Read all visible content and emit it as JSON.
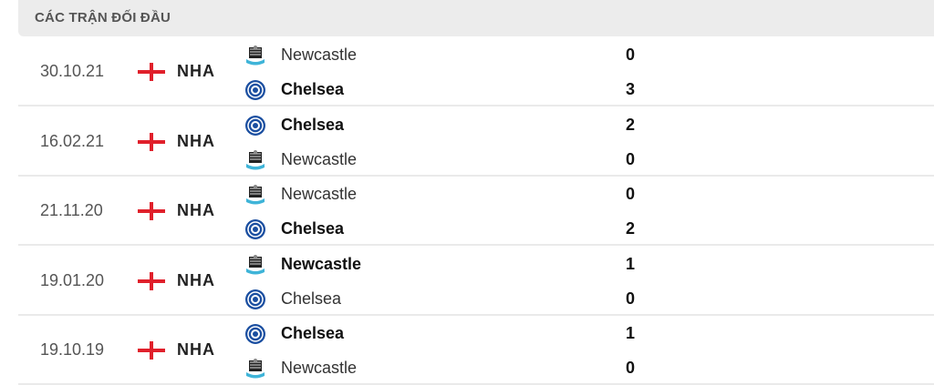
{
  "section_title": "CÁC TRẬN ĐỐI ĐẦU",
  "matches": [
    {
      "date": "30.10.21",
      "league": "NHA",
      "home": {
        "name": "Newcastle",
        "logo": "newcastle-crest",
        "score": "0",
        "winner": false
      },
      "away": {
        "name": "Chelsea",
        "logo": "chelsea-crest",
        "score": "3",
        "winner": true
      }
    },
    {
      "date": "16.02.21",
      "league": "NHA",
      "home": {
        "name": "Chelsea",
        "logo": "chelsea-crest",
        "score": "2",
        "winner": true
      },
      "away": {
        "name": "Newcastle",
        "logo": "newcastle-crest",
        "score": "0",
        "winner": false
      }
    },
    {
      "date": "21.11.20",
      "league": "NHA",
      "home": {
        "name": "Newcastle",
        "logo": "newcastle-crest",
        "score": "0",
        "winner": false
      },
      "away": {
        "name": "Chelsea",
        "logo": "chelsea-crest",
        "score": "2",
        "winner": true
      }
    },
    {
      "date": "19.01.20",
      "league": "NHA",
      "home": {
        "name": "Newcastle",
        "logo": "newcastle-crest",
        "score": "1",
        "winner": true
      },
      "away": {
        "name": "Chelsea",
        "logo": "chelsea-crest",
        "score": "0",
        "winner": false
      }
    },
    {
      "date": "19.10.19",
      "league": "NHA",
      "home": {
        "name": "Chelsea",
        "logo": "chelsea-crest",
        "score": "1",
        "winner": true
      },
      "away": {
        "name": "Newcastle",
        "logo": "newcastle-crest",
        "score": "0",
        "winner": false
      }
    }
  ],
  "colors": {
    "flag_red": "#e0202b",
    "header_bg": "#ececec"
  }
}
